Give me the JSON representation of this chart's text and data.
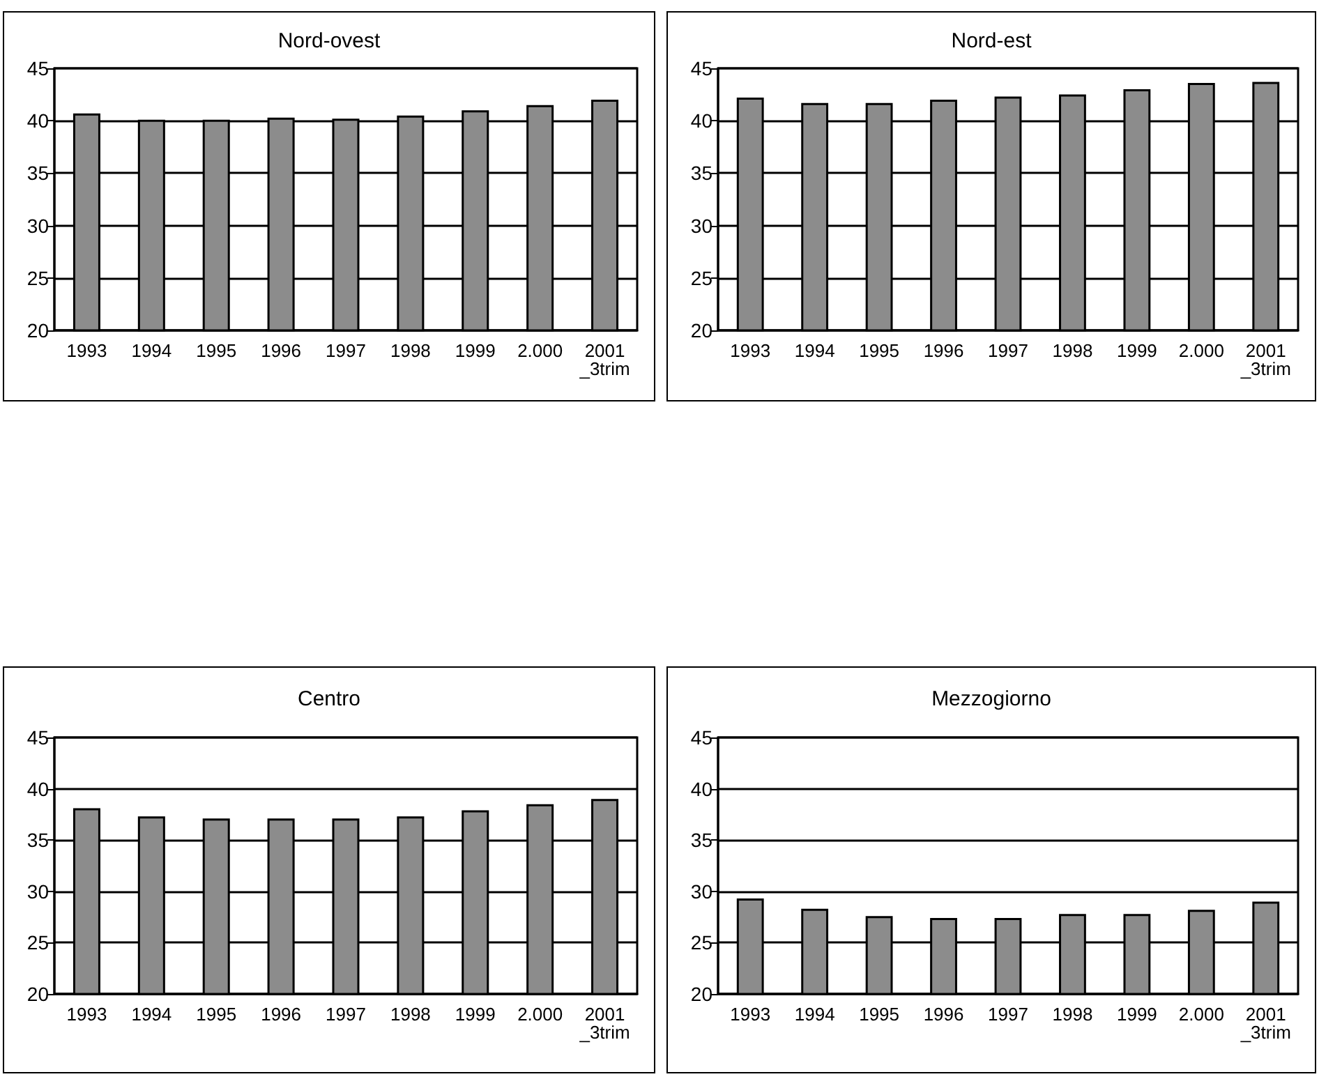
{
  "chart_data": [
    {
      "type": "bar",
      "title": "Nord-ovest",
      "categories": [
        "1993",
        "1994",
        "1995",
        "1996",
        "1997",
        "1998",
        "1999",
        "2.000",
        "2001\n_3trim"
      ],
      "values": [
        40.7,
        40.1,
        40.1,
        40.3,
        40.2,
        40.5,
        41.0,
        41.5,
        42.0
      ],
      "color": "#8c8c8c",
      "ylim": [
        20,
        45
      ],
      "yticks": [
        20,
        25,
        30,
        35,
        40,
        45
      ],
      "grid": "y"
    },
    {
      "type": "bar",
      "title": "Nord-est",
      "categories": [
        "1993",
        "1994",
        "1995",
        "1996",
        "1997",
        "1998",
        "1999",
        "2.000",
        "2001\n_3trim"
      ],
      "values": [
        42.2,
        41.7,
        41.7,
        42.0,
        42.3,
        42.5,
        43.0,
        43.6,
        43.7
      ],
      "color": "#8c8c8c",
      "ylim": [
        20,
        45
      ],
      "yticks": [
        20,
        25,
        30,
        35,
        40,
        45
      ],
      "grid": "y"
    },
    {
      "type": "bar",
      "title": "Centro",
      "categories": [
        "1993",
        "1994",
        "1995",
        "1996",
        "1997",
        "1998",
        "1999",
        "2.000",
        "2001\n_3trim"
      ],
      "values": [
        38.1,
        37.3,
        37.1,
        37.1,
        37.1,
        37.3,
        37.9,
        38.5,
        39.0
      ],
      "color": "#8c8c8c",
      "ylim": [
        20,
        45
      ],
      "yticks": [
        20,
        25,
        30,
        35,
        40,
        45
      ],
      "grid": "y"
    },
    {
      "type": "bar",
      "title": "Mezzogiorno",
      "categories": [
        "1993",
        "1994",
        "1995",
        "1996",
        "1997",
        "1998",
        "1999",
        "2.000",
        "2001\n_3trim"
      ],
      "values": [
        29.3,
        28.3,
        27.6,
        27.4,
        27.4,
        27.8,
        27.8,
        28.2,
        29.0
      ],
      "color": "#8c8c8c",
      "ylim": [
        20,
        45
      ],
      "yticks": [
        20,
        25,
        30,
        35,
        40,
        45
      ],
      "grid": "y"
    }
  ]
}
